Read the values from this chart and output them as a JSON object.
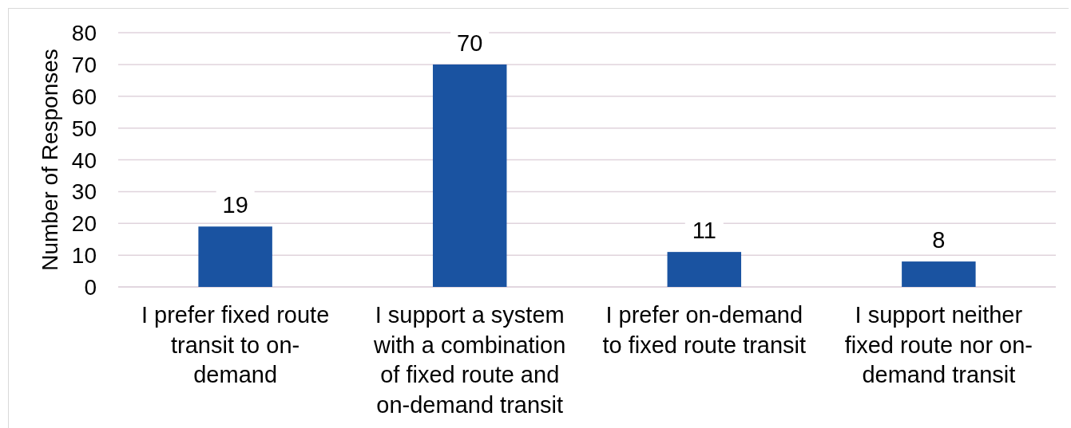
{
  "chart_data": {
    "type": "bar",
    "ylabel": "Number of Responses",
    "categories": [
      "I prefer fixed route transit to on-demand",
      "I support a system with a combination of fixed route and on-demand transit",
      "I prefer on-demand to fixed route transit",
      "I support neither fixed route nor on-demand transit"
    ],
    "values": [
      19,
      70,
      11,
      8
    ],
    "color": "#1a53a1",
    "ylim": [
      0,
      80
    ],
    "yticks": [
      0,
      10,
      20,
      30,
      40,
      50,
      60,
      70,
      80
    ],
    "grid": "y",
    "data_labels": true
  }
}
